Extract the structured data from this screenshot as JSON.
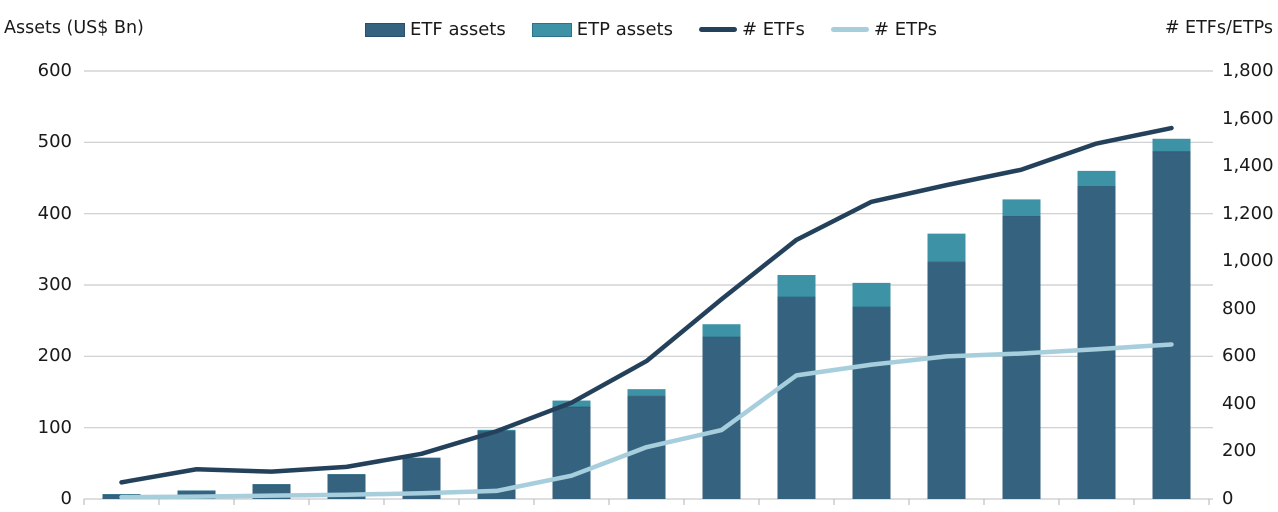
{
  "chart_data": {
    "type": "combo-bar-line",
    "description": "Stacked bars (ETF + ETP assets, left axis) with two lines (# ETFs and # ETPs, right axis); 15 yearly categories, x-axis tick marks visible but unlabeled",
    "n_categories": 15,
    "x_axis": {
      "labels_visible": false,
      "tick_count": 16
    },
    "left_axis": {
      "title": "Assets (US$ Bn)",
      "min": 0,
      "max": 600,
      "step": 100,
      "tick_labels": [
        "0",
        "100",
        "200",
        "300",
        "400",
        "500",
        "600"
      ]
    },
    "right_axis": {
      "title": "# ETFs/ETPs",
      "min": 0,
      "max": 1800,
      "step": 200,
      "tick_labels": [
        "0",
        "200",
        "400",
        "600",
        "800",
        "1,000",
        "1,200",
        "1,400",
        "1,600",
        "1,800"
      ]
    },
    "series": [
      {
        "name": "ETF assets",
        "type": "bar",
        "stack": "assets",
        "axis": "left",
        "color": "#35627f",
        "edge": "#2a4f6d",
        "values": [
          6,
          11,
          20,
          34,
          57,
          95,
          129,
          144,
          227,
          283,
          269,
          332,
          396,
          438,
          487
        ]
      },
      {
        "name": "ETP assets",
        "type": "bar",
        "stack": "assets",
        "axis": "left",
        "color": "#3d92a6",
        "edge": "#2d7287",
        "values": [
          1,
          1,
          1,
          1,
          1,
          2,
          9,
          10,
          18,
          31,
          34,
          40,
          24,
          22,
          18
        ]
      },
      {
        "name": "# ETFs",
        "type": "line",
        "axis": "right",
        "color": "#24415c",
        "edge": "#24415c",
        "values": [
          70,
          125,
          115,
          135,
          190,
          285,
          405,
          580,
          840,
          1090,
          1250,
          1320,
          1385,
          1495,
          1560
        ]
      },
      {
        "name": "# ETPs",
        "type": "line",
        "axis": "right",
        "color": "#a6cedd",
        "edge": "#a6cedd",
        "values": [
          8,
          10,
          14,
          18,
          24,
          34,
          98,
          218,
          290,
          520,
          565,
          600,
          612,
          630,
          650
        ]
      }
    ],
    "legend_position": "top-center",
    "grid": {
      "horizontal": true,
      "color": "#c9cbce"
    },
    "colors": {
      "text": "#1a1a1a",
      "gridline": "#c9cbce",
      "axis_tick": "#b0b3b6",
      "background": "#ffffff"
    }
  }
}
